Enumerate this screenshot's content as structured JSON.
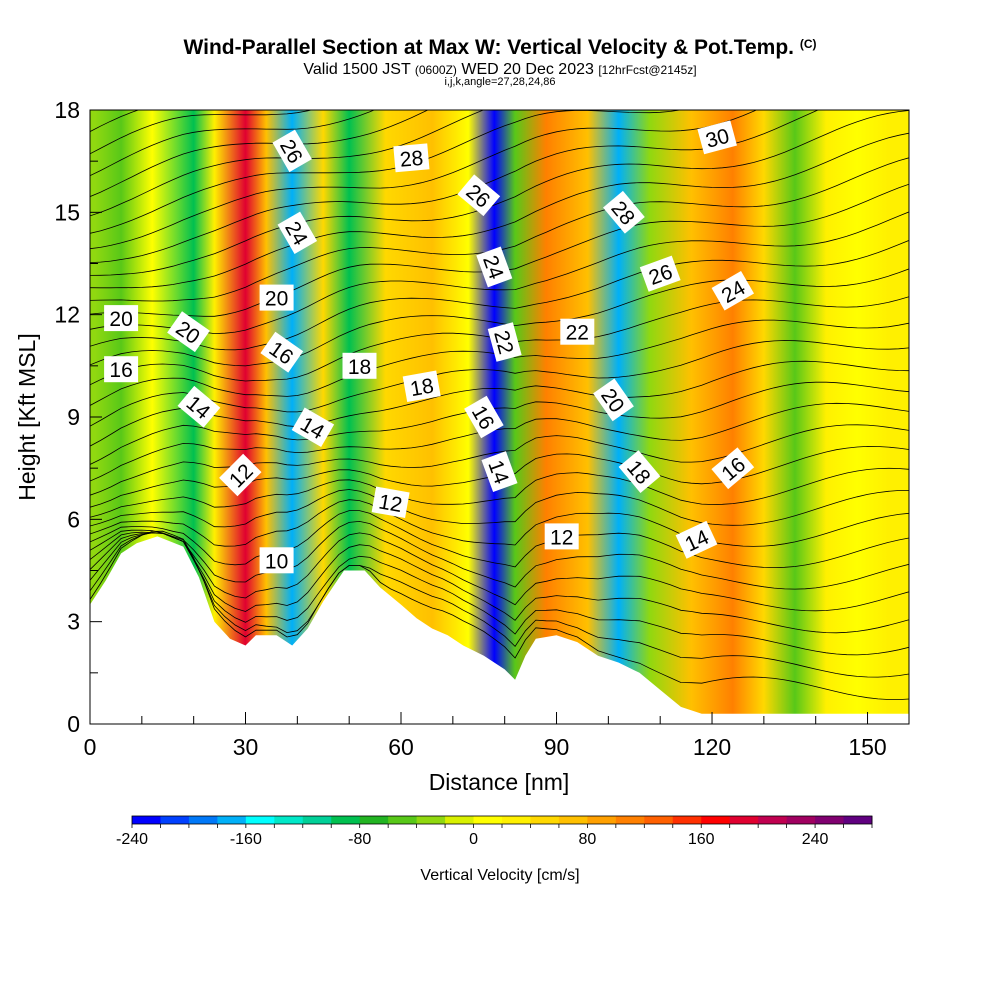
{
  "title": {
    "main": "Wind-Parallel Section at Max W: Vertical Velocity & Pot.Temp.",
    "tag": "(C)",
    "valid_prefix": "Valid 1500 JST",
    "utc": "(0600Z)",
    "date": "WED 20 Dec 2023",
    "forecast": "[12hrFcst@2145z]",
    "indices": "i,j,k,angle=27,28,24,86"
  },
  "chart_data": {
    "type": "heatmap",
    "title": "Wind-Parallel Section at Max W: Vertical Velocity & Pot.Temp.",
    "xlabel": "Distance [nm]",
    "ylabel": "Height [Kft MSL]",
    "xlim": [
      0,
      158
    ],
    "ylim": [
      0,
      18
    ],
    "xticks": [
      0,
      30,
      60,
      90,
      120,
      150
    ],
    "yticks": [
      0,
      3,
      6,
      9,
      12,
      15,
      18
    ],
    "colorbar": {
      "label": "Vertical Velocity [cm/s]",
      "min": -240,
      "max": 280,
      "step": 20,
      "tick_values": [
        -240,
        -160,
        -80,
        0,
        80,
        160,
        240
      ],
      "colors": [
        "#0000ff",
        "#0040ff",
        "#0078f8",
        "#00b0f8",
        "#00ffff",
        "#00e8c8",
        "#00d098",
        "#00c050",
        "#22b422",
        "#58c818",
        "#90d810",
        "#d8f000",
        "#ffff00",
        "#fff000",
        "#ffd800",
        "#ffc000",
        "#ffa000",
        "#ff8000",
        "#ff6000",
        "#ff3000",
        "#ff0000",
        "#e00030",
        "#c00050",
        "#a00060",
        "#800070",
        "#600080"
      ]
    },
    "velocity_columns": [
      {
        "x": 1,
        "w": -30
      },
      {
        "x": 6,
        "w": -60
      },
      {
        "x": 12,
        "w": 10
      },
      {
        "x": 20,
        "w": -90
      },
      {
        "x": 24,
        "w": 20
      },
      {
        "x": 30,
        "w": 190
      },
      {
        "x": 34,
        "w": 60
      },
      {
        "x": 39,
        "w": -170
      },
      {
        "x": 45,
        "w": 50
      },
      {
        "x": 50,
        "w": -90
      },
      {
        "x": 57,
        "w": 40
      },
      {
        "x": 66,
        "w": 60
      },
      {
        "x": 73,
        "w": 10
      },
      {
        "x": 78,
        "w": -240
      },
      {
        "x": 82,
        "w": -60
      },
      {
        "x": 88,
        "w": 110
      },
      {
        "x": 96,
        "w": 60
      },
      {
        "x": 102,
        "w": -170
      },
      {
        "x": 108,
        "w": -40
      },
      {
        "x": 116,
        "w": 70
      },
      {
        "x": 124,
        "w": 100
      },
      {
        "x": 130,
        "w": 40
      },
      {
        "x": 136,
        "w": -60
      },
      {
        "x": 142,
        "w": 30
      },
      {
        "x": 148,
        "w": 10
      },
      {
        "x": 154,
        "w": 30
      },
      {
        "x": 158,
        "w": 20
      }
    ],
    "terrain": [
      [
        0,
        3.5
      ],
      [
        3,
        4.2
      ],
      [
        6,
        5.0
      ],
      [
        9,
        5.3
      ],
      [
        13,
        5.5
      ],
      [
        18,
        5.2
      ],
      [
        21,
        4.3
      ],
      [
        24,
        3.0
      ],
      [
        27,
        2.5
      ],
      [
        30,
        2.3
      ],
      [
        32,
        2.6
      ],
      [
        36,
        2.6
      ],
      [
        39,
        2.3
      ],
      [
        42,
        2.8
      ],
      [
        45,
        3.6
      ],
      [
        49,
        4.5
      ],
      [
        53,
        4.5
      ],
      [
        56,
        4.0
      ],
      [
        60,
        3.5
      ],
      [
        63,
        3.1
      ],
      [
        66,
        2.8
      ],
      [
        69,
        2.6
      ],
      [
        72,
        2.3
      ],
      [
        76,
        2.0
      ],
      [
        80,
        1.6
      ],
      [
        82,
        1.3
      ],
      [
        84,
        2.0
      ],
      [
        86,
        2.5
      ],
      [
        90,
        2.6
      ],
      [
        94,
        2.4
      ],
      [
        98,
        2.0
      ],
      [
        102,
        1.8
      ],
      [
        106,
        1.5
      ],
      [
        110,
        1.0
      ],
      [
        114,
        0.5
      ],
      [
        118,
        0.3
      ],
      [
        120,
        0.3
      ],
      [
        158,
        0.3
      ]
    ],
    "theta_contour_levels": [
      10,
      12,
      14,
      16,
      18,
      20,
      22,
      24,
      26,
      28,
      30
    ],
    "contour_labels": [
      {
        "text": "20",
        "x": 6,
        "y": 11.9,
        "angle": 0
      },
      {
        "text": "20",
        "x": 19,
        "y": 11.5,
        "angle": 35
      },
      {
        "text": "16",
        "x": 6,
        "y": 10.4,
        "angle": 0
      },
      {
        "text": "14",
        "x": 21,
        "y": 9.3,
        "angle": 40
      },
      {
        "text": "12",
        "x": 29,
        "y": 7.3,
        "angle": -45
      },
      {
        "text": "10",
        "x": 36,
        "y": 4.8,
        "angle": 0
      },
      {
        "text": "26",
        "x": 39,
        "y": 16.8,
        "angle": 60
      },
      {
        "text": "24",
        "x": 40,
        "y": 14.4,
        "angle": 60
      },
      {
        "text": "20",
        "x": 36,
        "y": 12.5,
        "angle": 0
      },
      {
        "text": "16",
        "x": 37,
        "y": 10.9,
        "angle": 35
      },
      {
        "text": "14",
        "x": 43,
        "y": 8.7,
        "angle": 30
      },
      {
        "text": "18",
        "x": 52,
        "y": 10.5,
        "angle": 0
      },
      {
        "text": "18",
        "x": 64,
        "y": 9.9,
        "angle": -10
      },
      {
        "text": "28",
        "x": 62,
        "y": 16.6,
        "angle": -5
      },
      {
        "text": "12",
        "x": 58,
        "y": 6.5,
        "angle": 10
      },
      {
        "text": "26",
        "x": 75,
        "y": 15.5,
        "angle": 40
      },
      {
        "text": "24",
        "x": 78,
        "y": 13.4,
        "angle": 70
      },
      {
        "text": "22",
        "x": 80,
        "y": 11.2,
        "angle": 75
      },
      {
        "text": "16",
        "x": 76,
        "y": 9.0,
        "angle": 60
      },
      {
        "text": "14",
        "x": 79,
        "y": 7.4,
        "angle": 70
      },
      {
        "text": "22",
        "x": 94,
        "y": 11.5,
        "angle": 0
      },
      {
        "text": "12",
        "x": 91,
        "y": 5.5,
        "angle": 0
      },
      {
        "text": "28",
        "x": 103,
        "y": 15.0,
        "angle": 50
      },
      {
        "text": "20",
        "x": 101,
        "y": 9.5,
        "angle": 55
      },
      {
        "text": "18",
        "x": 106,
        "y": 7.4,
        "angle": 50
      },
      {
        "text": "26",
        "x": 110,
        "y": 13.2,
        "angle": -20
      },
      {
        "text": "14",
        "x": 117,
        "y": 5.4,
        "angle": -25
      },
      {
        "text": "16",
        "x": 124,
        "y": 7.5,
        "angle": -40
      },
      {
        "text": "24",
        "x": 124,
        "y": 12.7,
        "angle": -30
      },
      {
        "text": "30",
        "x": 121,
        "y": 17.2,
        "angle": -15
      }
    ]
  }
}
